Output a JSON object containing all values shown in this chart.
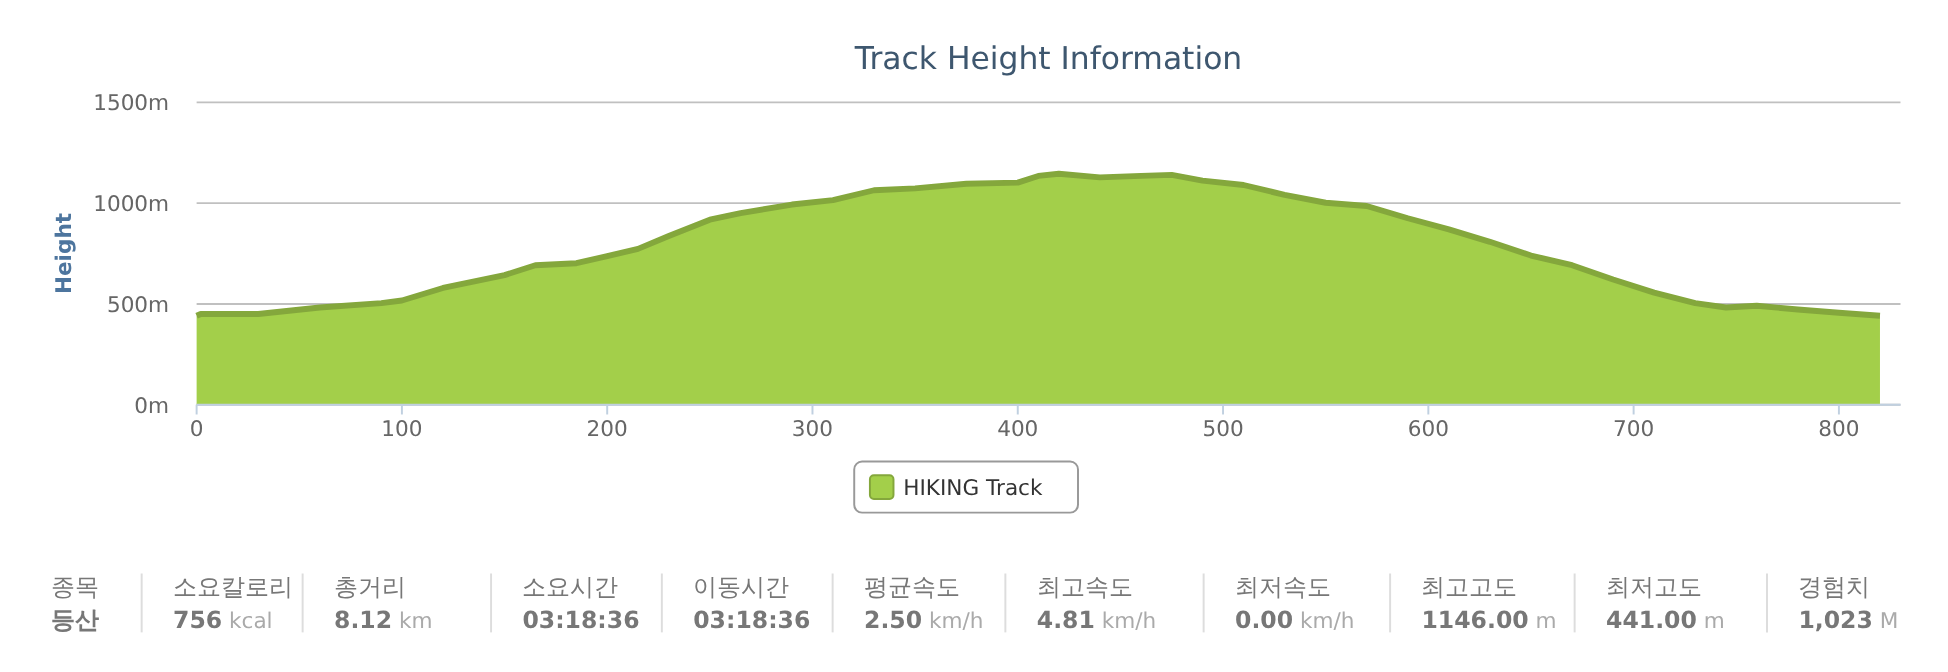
{
  "chart_data": [
    {
      "type": "area",
      "title": "Track Height Information",
      "ylabel": "Height",
      "x": [
        0,
        2,
        30,
        60,
        90,
        100,
        120,
        150,
        165,
        185,
        200,
        215,
        230,
        250,
        265,
        290,
        310,
        330,
        350,
        375,
        400,
        410,
        420,
        440,
        460,
        475,
        490,
        510,
        530,
        550,
        570,
        590,
        610,
        630,
        650,
        670,
        690,
        710,
        730,
        745,
        760,
        780,
        800,
        820
      ],
      "series": [
        {
          "name": "HIKING Track",
          "color": "#a3cf4a",
          "values": [
            441,
            450,
            450,
            482,
            504,
            517,
            579,
            643,
            692,
            702,
            737,
            773,
            837,
            918,
            950,
            993,
            1015,
            1064,
            1073,
            1096,
            1102,
            1135,
            1146,
            1128,
            1135,
            1140,
            1112,
            1090,
            1041,
            1002,
            986,
            925,
            870,
            808,
            740,
            692,
            621,
            556,
            504,
            482,
            491,
            472,
            456,
            441
          ]
        }
      ],
      "xlim": [
        0,
        830
      ],
      "xticks": [
        0,
        100,
        200,
        300,
        400,
        500,
        600,
        700,
        800
      ],
      "ylim": [
        0,
        1500
      ],
      "yticks": [
        {
          "value": 0,
          "label": "0m"
        },
        {
          "value": 500,
          "label": "500m"
        },
        {
          "value": 1000,
          "label": "1000m"
        },
        {
          "value": 1500,
          "label": "1500m"
        }
      ],
      "grid": "y",
      "legend": "bottom"
    },
    {
      "type": "other",
      "annotations": [
        "종목",
        "등산",
        "소요칼로리",
        "756 kcal",
        "총거리",
        "8.12 km",
        "소요시간",
        "03:18:36",
        "이동시간",
        "03:18:36",
        "평균속도",
        "2.50 km/h",
        "최고속도",
        "4.81 km/h",
        "최저속도",
        "0.00 km/h",
        "최고고도",
        "1146.00 m",
        "최저고도",
        "441.00 m",
        "경험치",
        "1,023 M"
      ]
    }
  ]
}
